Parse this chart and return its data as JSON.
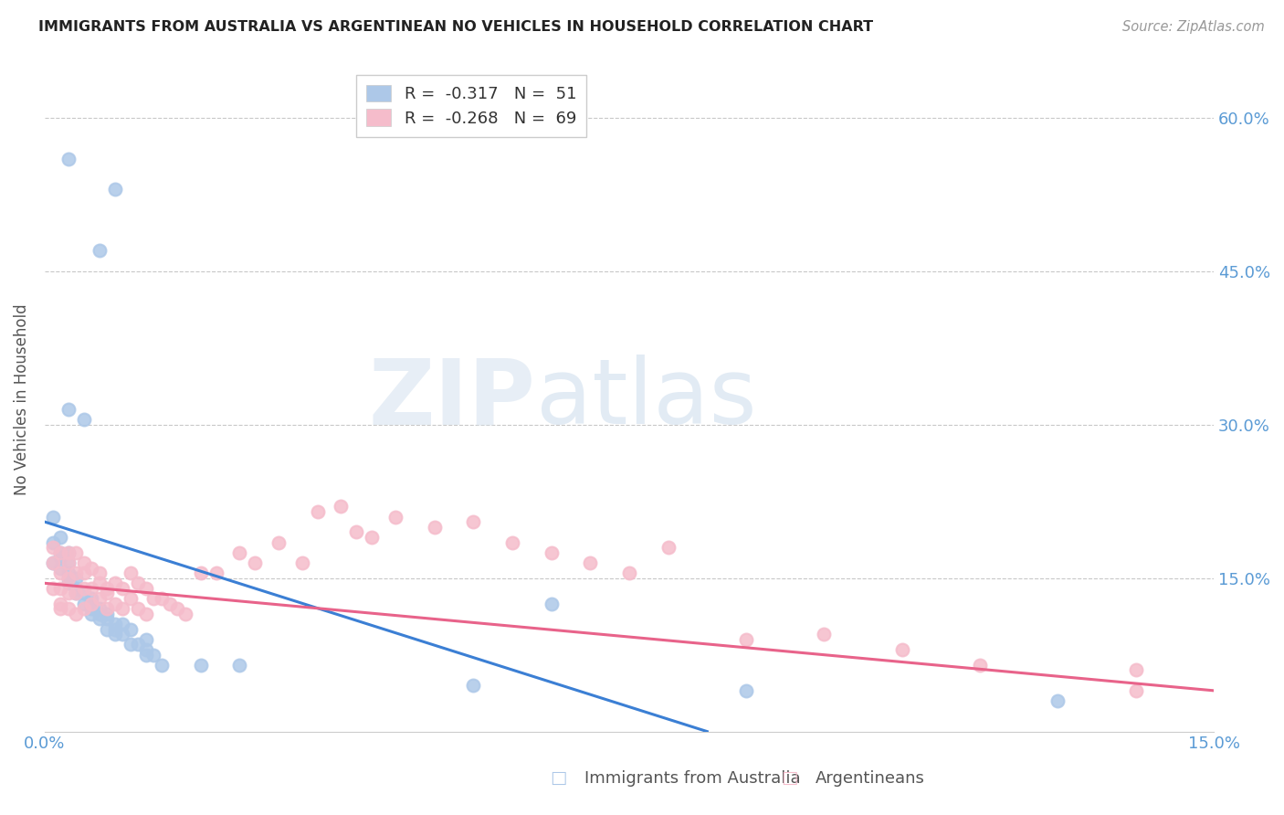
{
  "title": "IMMIGRANTS FROM AUSTRALIA VS ARGENTINEAN NO VEHICLES IN HOUSEHOLD CORRELATION CHART",
  "source": "Source: ZipAtlas.com",
  "ylabel": "No Vehicles in Household",
  "yaxis_ticks": [
    "60.0%",
    "45.0%",
    "30.0%",
    "15.0%"
  ],
  "yaxis_tick_vals": [
    0.6,
    0.45,
    0.3,
    0.15
  ],
  "xlim": [
    0.0,
    0.15
  ],
  "ylim": [
    0.0,
    0.65
  ],
  "legend1_label": "R =  -0.317   N =  51",
  "legend2_label": "R =  -0.268   N =  69",
  "legend1_color": "#adc8e8",
  "legend2_color": "#f5bccb",
  "scatter1_color": "#adc8e8",
  "scatter2_color": "#f5bccb",
  "line1_color": "#3b7fd4",
  "line2_color": "#e8638a",
  "watermark_zip": "ZIP",
  "watermark_atlas": "atlas",
  "series1_x": [
    0.003,
    0.009,
    0.007,
    0.003,
    0.005,
    0.001,
    0.002,
    0.001,
    0.002,
    0.003,
    0.002,
    0.003,
    0.001,
    0.002,
    0.003,
    0.003,
    0.004,
    0.003,
    0.004,
    0.004,
    0.005,
    0.005,
    0.006,
    0.006,
    0.006,
    0.007,
    0.006,
    0.007,
    0.007,
    0.008,
    0.008,
    0.008,
    0.009,
    0.009,
    0.009,
    0.01,
    0.01,
    0.011,
    0.011,
    0.012,
    0.013,
    0.013,
    0.013,
    0.014,
    0.015,
    0.02,
    0.025,
    0.055,
    0.065,
    0.09,
    0.13
  ],
  "series1_y": [
    0.56,
    0.53,
    0.47,
    0.315,
    0.305,
    0.21,
    0.19,
    0.185,
    0.175,
    0.175,
    0.17,
    0.165,
    0.165,
    0.16,
    0.155,
    0.15,
    0.15,
    0.145,
    0.14,
    0.135,
    0.135,
    0.125,
    0.13,
    0.125,
    0.12,
    0.12,
    0.115,
    0.115,
    0.11,
    0.115,
    0.11,
    0.1,
    0.105,
    0.1,
    0.095,
    0.105,
    0.095,
    0.1,
    0.085,
    0.085,
    0.09,
    0.08,
    0.075,
    0.075,
    0.065,
    0.065,
    0.065,
    0.045,
    0.125,
    0.04,
    0.03
  ],
  "series2_x": [
    0.001,
    0.001,
    0.001,
    0.002,
    0.002,
    0.002,
    0.002,
    0.002,
    0.003,
    0.003,
    0.003,
    0.003,
    0.003,
    0.004,
    0.004,
    0.004,
    0.004,
    0.005,
    0.005,
    0.005,
    0.005,
    0.006,
    0.006,
    0.006,
    0.007,
    0.007,
    0.007,
    0.008,
    0.008,
    0.008,
    0.009,
    0.009,
    0.01,
    0.01,
    0.011,
    0.011,
    0.012,
    0.012,
    0.013,
    0.013,
    0.014,
    0.015,
    0.016,
    0.017,
    0.018,
    0.02,
    0.022,
    0.025,
    0.027,
    0.03,
    0.033,
    0.035,
    0.038,
    0.04,
    0.042,
    0.045,
    0.05,
    0.055,
    0.06,
    0.065,
    0.07,
    0.075,
    0.08,
    0.09,
    0.1,
    0.11,
    0.12,
    0.14,
    0.14
  ],
  "series2_y": [
    0.18,
    0.165,
    0.14,
    0.175,
    0.155,
    0.14,
    0.125,
    0.12,
    0.175,
    0.165,
    0.15,
    0.135,
    0.12,
    0.175,
    0.155,
    0.135,
    0.115,
    0.165,
    0.155,
    0.14,
    0.12,
    0.16,
    0.14,
    0.125,
    0.155,
    0.145,
    0.13,
    0.14,
    0.135,
    0.12,
    0.145,
    0.125,
    0.14,
    0.12,
    0.155,
    0.13,
    0.145,
    0.12,
    0.14,
    0.115,
    0.13,
    0.13,
    0.125,
    0.12,
    0.115,
    0.155,
    0.155,
    0.175,
    0.165,
    0.185,
    0.165,
    0.215,
    0.22,
    0.195,
    0.19,
    0.21,
    0.2,
    0.205,
    0.185,
    0.175,
    0.165,
    0.155,
    0.18,
    0.09,
    0.095,
    0.08,
    0.065,
    0.06,
    0.04
  ],
  "line1_x0": 0.0,
  "line1_y0": 0.205,
  "line1_x1": 0.085,
  "line1_y1": 0.0,
  "line2_x0": 0.0,
  "line2_y0": 0.145,
  "line2_x1": 0.15,
  "line2_y1": 0.04
}
